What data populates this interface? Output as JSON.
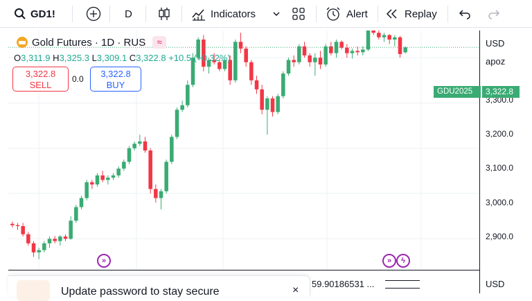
{
  "toolbar": {
    "symbol": "GD1!",
    "interval": "D",
    "indicators_label": "Indicators",
    "alert_label": "Alert",
    "replay_label": "Replay"
  },
  "legend": {
    "title": "Gold Futures · 1D · RUS",
    "open_key": "O",
    "open": "3,311.9",
    "high_key": "H",
    "high": "3,325.3",
    "low_key": "L",
    "low": "3,309.1",
    "close_key": "C",
    "close": "3,322.8",
    "change": "+10.5 (+0.32%)"
  },
  "trade": {
    "sell_price": "3,322.8",
    "sell_label": "SELL",
    "spread": "0.0",
    "buy_price": "3,322.8",
    "buy_label": "BUY"
  },
  "axis": {
    "currency": "USD",
    "scale_label": "apoz",
    "ticks": [
      "3,300.0",
      "3,200.0",
      "3,100.0",
      "3,000.0",
      "2,900.0"
    ],
    "price_tag": "3,322.8",
    "symbol_tag": "GDU2025",
    "bottom_currency": "USD"
  },
  "toast": {
    "text": "Update password to stay secure",
    "close": "×"
  },
  "partial_text": "59.90186531 ...",
  "colors": {
    "up": "#3aab73",
    "down": "#f23645",
    "marker": "#9c27b0"
  },
  "chart_data": {
    "type": "candlestick",
    "ylim": [
      2830,
      3360
    ],
    "candles": [
      [
        2933,
        2938,
        2925,
        2930
      ],
      [
        2930,
        2935,
        2920,
        2928
      ],
      [
        2928,
        2935,
        2905,
        2910
      ],
      [
        2910,
        2915,
        2885,
        2890
      ],
      [
        2890,
        2895,
        2860,
        2870
      ],
      [
        2870,
        2880,
        2855,
        2875
      ],
      [
        2875,
        2895,
        2870,
        2890
      ],
      [
        2890,
        2905,
        2880,
        2900
      ],
      [
        2900,
        2906,
        2890,
        2895
      ],
      [
        2895,
        2908,
        2885,
        2905
      ],
      [
        2905,
        2910,
        2895,
        2900
      ],
      [
        2900,
        2950,
        2898,
        2940
      ],
      [
        2940,
        2975,
        2935,
        2970
      ],
      [
        2970,
        2995,
        2965,
        2990
      ],
      [
        2990,
        3030,
        2985,
        3025
      ],
      [
        3025,
        3030,
        3010,
        3020
      ],
      [
        3020,
        3045,
        3015,
        3040
      ],
      [
        3040,
        3050,
        3025,
        3030
      ],
      [
        3030,
        3040,
        3020,
        3035
      ],
      [
        3035,
        3045,
        3030,
        3040
      ],
      [
        3040,
        3060,
        3035,
        3055
      ],
      [
        3055,
        3075,
        3050,
        3070
      ],
      [
        3070,
        3105,
        3065,
        3100
      ],
      [
        3100,
        3115,
        3095,
        3110
      ],
      [
        3110,
        3130,
        3105,
        3115
      ],
      [
        3115,
        3125,
        3090,
        3095
      ],
      [
        3095,
        3100,
        3000,
        3010
      ],
      [
        3010,
        3020,
        2980,
        2990
      ],
      [
        2990,
        3010,
        2965,
        3005
      ],
      [
        3005,
        3075,
        3000,
        3070
      ],
      [
        3070,
        3130,
        3065,
        3125
      ],
      [
        3125,
        3190,
        3120,
        3185
      ],
      [
        3185,
        3205,
        3180,
        3195
      ],
      [
        3195,
        3250,
        3190,
        3240
      ],
      [
        3240,
        3310,
        3235,
        3300
      ],
      [
        3300,
        3345,
        3295,
        3340
      ],
      [
        3340,
        3350,
        3270,
        3280
      ],
      [
        3280,
        3300,
        3265,
        3295
      ],
      [
        3295,
        3310,
        3285,
        3290
      ],
      [
        3290,
        3298,
        3270,
        3275
      ],
      [
        3275,
        3300,
        3270,
        3295
      ],
      [
        3295,
        3305,
        3240,
        3250
      ],
      [
        3250,
        3340,
        3245,
        3335
      ],
      [
        3335,
        3355,
        3310,
        3320
      ],
      [
        3320,
        3325,
        3280,
        3290
      ],
      [
        3290,
        3295,
        3240,
        3250
      ],
      [
        3250,
        3260,
        3220,
        3230
      ],
      [
        3230,
        3240,
        3175,
        3185
      ],
      [
        3185,
        3215,
        3130,
        3210
      ],
      [
        3210,
        3215,
        3170,
        3180
      ],
      [
        3180,
        3220,
        3175,
        3215
      ],
      [
        3215,
        3270,
        3210,
        3265
      ],
      [
        3265,
        3300,
        3260,
        3295
      ],
      [
        3295,
        3305,
        3280,
        3290
      ],
      [
        3290,
        3330,
        3285,
        3325
      ],
      [
        3325,
        3335,
        3300,
        3305
      ],
      [
        3305,
        3310,
        3280,
        3290
      ],
      [
        3290,
        3310,
        3260,
        3300
      ],
      [
        3300,
        3315,
        3275,
        3285
      ],
      [
        3285,
        3330,
        3280,
        3325
      ],
      [
        3325,
        3335,
        3305,
        3310
      ],
      [
        3310,
        3340,
        3300,
        3335
      ],
      [
        3335,
        3338,
        3318,
        3322
      ],
      [
        3322,
        3330,
        3300,
        3310
      ],
      [
        3310,
        3320,
        3298,
        3315
      ],
      [
        3315,
        3325,
        3305,
        3312
      ],
      [
        3312,
        3325,
        3305,
        3318
      ],
      [
        3318,
        3380,
        3315,
        3370
      ],
      [
        3370,
        3375,
        3350,
        3355
      ],
      [
        3355,
        3360,
        3340,
        3345
      ],
      [
        3345,
        3355,
        3335,
        3350
      ],
      [
        3350,
        3352,
        3330,
        3340
      ],
      [
        3340,
        3350,
        3325,
        3345
      ],
      [
        3345,
        3348,
        3300,
        3308
      ],
      [
        3311.9,
        3325.3,
        3309.1,
        3322.8
      ]
    ]
  }
}
